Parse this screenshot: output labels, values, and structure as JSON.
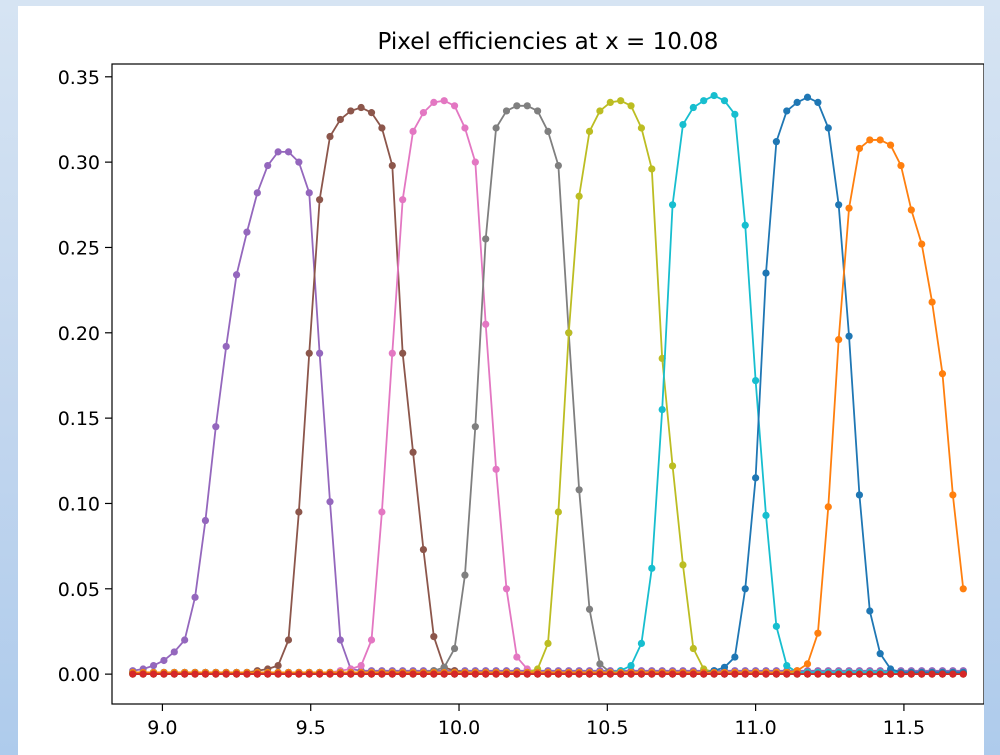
{
  "colors": {
    "tab:blue": "#1f77b4",
    "tab:orange": "#ff7f0e",
    "tab:green": "#2ca02c",
    "tab:red": "#d62728",
    "tab:purple": "#9467bd",
    "tab:brown": "#8c564b",
    "tab:pink": "#e377c2",
    "tab:gray": "#7f7f7f",
    "tab:olive": "#bcbd22",
    "tab:cyan": "#17becf"
  },
  "chart_data": {
    "type": "line",
    "title": "Pixel efficiencies at x = 10.08",
    "xlabel": "",
    "ylabel": "",
    "xlim": [
      8.83,
      11.77
    ],
    "ylim": [
      -0.0175,
      0.3575
    ],
    "x_ticks": [
      9.0,
      9.5,
      10.0,
      10.5,
      11.0,
      11.5
    ],
    "x_tick_labels": [
      "9.0",
      "9.5",
      "10.0",
      "10.5",
      "11.0",
      "11.5"
    ],
    "y_ticks": [
      0.0,
      0.05,
      0.1,
      0.15,
      0.2,
      0.25,
      0.3,
      0.35
    ],
    "y_tick_labels": [
      "0.00",
      "0.05",
      "0.10",
      "0.15",
      "0.20",
      "0.25",
      "0.30",
      "0.35"
    ],
    "grid": false,
    "legend": "none",
    "marker": "circle",
    "x": [
      8.9,
      8.935,
      8.97,
      9.005,
      9.04,
      9.075,
      9.11,
      9.145,
      9.18,
      9.215,
      9.25,
      9.285,
      9.32,
      9.355,
      9.39,
      9.425,
      9.46,
      9.495,
      9.53,
      9.565,
      9.6,
      9.635,
      9.67,
      9.705,
      9.74,
      9.775,
      9.81,
      9.845,
      9.88,
      9.915,
      9.95,
      9.985,
      10.02,
      10.055,
      10.09,
      10.125,
      10.16,
      10.195,
      10.23,
      10.265,
      10.3,
      10.335,
      10.37,
      10.405,
      10.44,
      10.475,
      10.51,
      10.545,
      10.58,
      10.615,
      10.65,
      10.685,
      10.72,
      10.755,
      10.79,
      10.825,
      10.86,
      10.895,
      10.93,
      10.965,
      11.0,
      11.035,
      11.07,
      11.105,
      11.14,
      11.175,
      11.21,
      11.245,
      11.28,
      11.315,
      11.35,
      11.385,
      11.42,
      11.455,
      11.49,
      11.525,
      11.56,
      11.595,
      11.63,
      11.665,
      11.7
    ],
    "series": [
      {
        "color": "tab:purple",
        "values": [
          0.002,
          0.003,
          0.005,
          0.008,
          0.013,
          0.02,
          0.045,
          0.09,
          0.145,
          0.192,
          0.234,
          0.259,
          0.282,
          0.298,
          0.306,
          0.306,
          0.3,
          0.282,
          0.188,
          0.101,
          0.02,
          0.003,
          0.002,
          0.002,
          0.002,
          0.002,
          0.002,
          0.002,
          0.002,
          0.002,
          0.002,
          0.002,
          0.002,
          0.002,
          0.002,
          0.002,
          0.002,
          0.002,
          0.002,
          0.002,
          0.002,
          0.002,
          0.002,
          0.002,
          0.002,
          0.002,
          0.002,
          0.002,
          0.002,
          0.002,
          0.002,
          0.002,
          0.002,
          0.002,
          0.002,
          0.002,
          0.002,
          0.002,
          0.002,
          0.002,
          0.002,
          0.002,
          0.002,
          0.002,
          0.002,
          0.002,
          0.002,
          0.002,
          0.002,
          0.002,
          0.002,
          0.002,
          0.002,
          0.002,
          0.002,
          0.002,
          0.002,
          0.002,
          0.002,
          0.002,
          0.002
        ]
      },
      {
        "color": "tab:brown",
        "values": [
          0.001,
          0.001,
          0.001,
          0.001,
          0.001,
          0.001,
          0.001,
          0.001,
          0.001,
          0.001,
          0.001,
          0.001,
          0.002,
          0.003,
          0.005,
          0.02,
          0.095,
          0.188,
          0.278,
          0.315,
          0.325,
          0.33,
          0.332,
          0.329,
          0.32,
          0.298,
          0.188,
          0.13,
          0.073,
          0.022,
          0.004,
          0.002,
          0.001,
          0.001,
          0.001,
          0.001,
          0.001,
          0.001,
          0.001,
          0.001,
          0.001,
          0.001,
          0.001,
          0.001,
          0.001,
          0.001,
          0.001,
          0.001,
          0.001,
          0.001,
          0.001,
          0.001,
          0.001,
          0.001,
          0.001,
          0.001,
          0.001,
          0.001,
          0.001,
          0.001,
          0.001,
          0.001,
          0.001,
          0.001,
          0.001,
          0.001,
          0.001,
          0.001,
          0.001,
          0.001,
          0.001,
          0.001,
          0.001,
          0.001,
          0.001,
          0.001,
          0.001,
          0.001,
          0.001,
          0.001,
          0.001
        ]
      },
      {
        "color": "tab:pink",
        "values": [
          0.001,
          0.001,
          0.001,
          0.001,
          0.001,
          0.001,
          0.001,
          0.001,
          0.001,
          0.001,
          0.001,
          0.001,
          0.001,
          0.001,
          0.001,
          0.001,
          0.001,
          0.001,
          0.001,
          0.001,
          0.002,
          0.003,
          0.005,
          0.02,
          0.095,
          0.188,
          0.278,
          0.318,
          0.329,
          0.335,
          0.336,
          0.333,
          0.32,
          0.3,
          0.205,
          0.12,
          0.05,
          0.01,
          0.003,
          0.001,
          0.001,
          0.001,
          0.001,
          0.001,
          0.001,
          0.001,
          0.001,
          0.001,
          0.001,
          0.001,
          0.001,
          0.001,
          0.001,
          0.001,
          0.001,
          0.001,
          0.001,
          0.001,
          0.001,
          0.001,
          0.001,
          0.001,
          0.001,
          0.001,
          0.001,
          0.001,
          0.001,
          0.001,
          0.001,
          0.001,
          0.001,
          0.001,
          0.001,
          0.001,
          0.001,
          0.001,
          0.001,
          0.001,
          0.001,
          0.001,
          0.001
        ]
      },
      {
        "color": "tab:gray",
        "values": [
          0.001,
          0.001,
          0.001,
          0.001,
          0.001,
          0.001,
          0.001,
          0.001,
          0.001,
          0.001,
          0.001,
          0.001,
          0.001,
          0.001,
          0.001,
          0.001,
          0.001,
          0.001,
          0.001,
          0.001,
          0.001,
          0.001,
          0.001,
          0.001,
          0.001,
          0.001,
          0.001,
          0.001,
          0.001,
          0.002,
          0.004,
          0.015,
          0.058,
          0.145,
          0.255,
          0.32,
          0.33,
          0.333,
          0.333,
          0.33,
          0.318,
          0.298,
          0.2,
          0.108,
          0.038,
          0.006,
          0.001,
          0.001,
          0.001,
          0.001,
          0.001,
          0.001,
          0.001,
          0.001,
          0.001,
          0.001,
          0.001,
          0.001,
          0.001,
          0.001,
          0.001,
          0.001,
          0.001,
          0.001,
          0.001,
          0.001,
          0.001,
          0.001,
          0.001,
          0.001,
          0.001,
          0.001,
          0.001,
          0.001,
          0.001,
          0.001,
          0.001,
          0.001,
          0.001,
          0.001,
          0.001
        ]
      },
      {
        "color": "tab:olive",
        "values": [
          0.001,
          0.001,
          0.001,
          0.001,
          0.001,
          0.001,
          0.001,
          0.001,
          0.001,
          0.001,
          0.001,
          0.001,
          0.001,
          0.001,
          0.001,
          0.001,
          0.001,
          0.001,
          0.001,
          0.001,
          0.001,
          0.001,
          0.001,
          0.001,
          0.001,
          0.001,
          0.001,
          0.001,
          0.001,
          0.001,
          0.001,
          0.001,
          0.001,
          0.001,
          0.001,
          0.001,
          0.001,
          0.001,
          0.001,
          0.003,
          0.018,
          0.095,
          0.2,
          0.28,
          0.318,
          0.33,
          0.335,
          0.336,
          0.333,
          0.32,
          0.296,
          0.185,
          0.122,
          0.064,
          0.015,
          0.003,
          0.001,
          0.001,
          0.001,
          0.001,
          0.001,
          0.001,
          0.001,
          0.001,
          0.001,
          0.001,
          0.001,
          0.001,
          0.001,
          0.001,
          0.001,
          0.001,
          0.001,
          0.001,
          0.001,
          0.001,
          0.001,
          0.001,
          0.001,
          0.001,
          0.001
        ]
      },
      {
        "color": "tab:cyan",
        "values": [
          0.001,
          0.001,
          0.001,
          0.001,
          0.001,
          0.001,
          0.001,
          0.001,
          0.001,
          0.001,
          0.001,
          0.001,
          0.001,
          0.001,
          0.001,
          0.001,
          0.001,
          0.001,
          0.001,
          0.001,
          0.001,
          0.001,
          0.001,
          0.001,
          0.001,
          0.001,
          0.001,
          0.001,
          0.001,
          0.001,
          0.001,
          0.001,
          0.001,
          0.001,
          0.001,
          0.001,
          0.001,
          0.001,
          0.001,
          0.001,
          0.001,
          0.001,
          0.001,
          0.001,
          0.001,
          0.001,
          0.001,
          0.002,
          0.005,
          0.018,
          0.062,
          0.155,
          0.275,
          0.322,
          0.332,
          0.336,
          0.339,
          0.336,
          0.328,
          0.263,
          0.172,
          0.093,
          0.028,
          0.005,
          0.001,
          0.001,
          0.001,
          0.001,
          0.001,
          0.001,
          0.001,
          0.001,
          0.001,
          0.001,
          0.001,
          0.001,
          0.001,
          0.001,
          0.001,
          0.001,
          0.001
        ]
      },
      {
        "color": "tab:blue",
        "values": [
          0.001,
          0.001,
          0.001,
          0.001,
          0.001,
          0.001,
          0.001,
          0.001,
          0.001,
          0.001,
          0.001,
          0.001,
          0.001,
          0.001,
          0.001,
          0.001,
          0.001,
          0.001,
          0.001,
          0.001,
          0.001,
          0.001,
          0.001,
          0.001,
          0.001,
          0.001,
          0.001,
          0.001,
          0.001,
          0.001,
          0.001,
          0.001,
          0.001,
          0.001,
          0.001,
          0.001,
          0.001,
          0.001,
          0.001,
          0.001,
          0.001,
          0.001,
          0.001,
          0.001,
          0.001,
          0.001,
          0.001,
          0.001,
          0.001,
          0.001,
          0.001,
          0.001,
          0.001,
          0.001,
          0.001,
          0.001,
          0.002,
          0.004,
          0.01,
          0.05,
          0.115,
          0.235,
          0.312,
          0.33,
          0.335,
          0.338,
          0.335,
          0.32,
          0.275,
          0.198,
          0.105,
          0.037,
          0.012,
          0.003,
          0.001,
          0.001,
          0.001,
          0.001,
          0.001,
          0.001,
          0.001
        ]
      },
      {
        "color": "tab:orange",
        "values": [
          0.001,
          0.001,
          0.001,
          0.001,
          0.001,
          0.001,
          0.001,
          0.001,
          0.001,
          0.001,
          0.001,
          0.001,
          0.001,
          0.001,
          0.001,
          0.001,
          0.001,
          0.001,
          0.001,
          0.001,
          0.001,
          0.001,
          0.001,
          0.001,
          0.001,
          0.001,
          0.001,
          0.001,
          0.001,
          0.001,
          0.001,
          0.001,
          0.001,
          0.001,
          0.001,
          0.001,
          0.001,
          0.001,
          0.001,
          0.001,
          0.001,
          0.001,
          0.001,
          0.001,
          0.001,
          0.001,
          0.001,
          0.001,
          0.001,
          0.001,
          0.001,
          0.001,
          0.001,
          0.001,
          0.001,
          0.001,
          0.001,
          0.001,
          0.001,
          0.001,
          0.001,
          0.001,
          0.001,
          0.001,
          0.002,
          0.006,
          0.024,
          0.098,
          0.196,
          0.273,
          0.308,
          0.313,
          0.313,
          0.31,
          0.298,
          0.272,
          0.252,
          0.218,
          0.176,
          0.105,
          0.05
        ]
      },
      {
        "color": "tab:green",
        "values": [
          0.0,
          0.0,
          0.0,
          0.0,
          0.0,
          0.0,
          0.0,
          0.0,
          0.0,
          0.0,
          0.0,
          0.0,
          0.0,
          0.0,
          0.0,
          0.0,
          0.0,
          0.0,
          0.0,
          0.0,
          0.0,
          0.0,
          0.0,
          0.0,
          0.0,
          0.0,
          0.0,
          0.0,
          0.0,
          0.0,
          0.0,
          0.0,
          0.0,
          0.0,
          0.0,
          0.0,
          0.0,
          0.0,
          0.0,
          0.0,
          0.0,
          0.0,
          0.0,
          0.0,
          0.0,
          0.0,
          0.0,
          0.0,
          0.0,
          0.0,
          0.0,
          0.0,
          0.0,
          0.0,
          0.0,
          0.0,
          0.0,
          0.0,
          0.0,
          0.0,
          0.0,
          0.0,
          0.0,
          0.0,
          0.0,
          0.0,
          0.0,
          0.0,
          0.0,
          0.0,
          0.0,
          0.0,
          0.0,
          0.0,
          0.0,
          0.0,
          0.0,
          0.0,
          0.0,
          0.0,
          0.0
        ]
      },
      {
        "color": "tab:red",
        "values": [
          0.0,
          0.0,
          0.0,
          0.0,
          0.0,
          0.0,
          0.0,
          0.0,
          0.0,
          0.0,
          0.0,
          0.0,
          0.0,
          0.0,
          0.0,
          0.0,
          0.0,
          0.0,
          0.0,
          0.0,
          0.0,
          0.0,
          0.0,
          0.0,
          0.0,
          0.0,
          0.0,
          0.0,
          0.0,
          0.0,
          0.0,
          0.0,
          0.0,
          0.0,
          0.0,
          0.0,
          0.0,
          0.0,
          0.0,
          0.0,
          0.0,
          0.0,
          0.0,
          0.0,
          0.0,
          0.0,
          0.0,
          0.0,
          0.0,
          0.0,
          0.0,
          0.0,
          0.0,
          0.0,
          0.0,
          0.0,
          0.0,
          0.0,
          0.0,
          0.0,
          0.0,
          0.0,
          0.0,
          0.0,
          0.0,
          0.0,
          0.0,
          0.0,
          0.0,
          0.0,
          0.0,
          0.0,
          0.0,
          0.0,
          0.0,
          0.0,
          0.0,
          0.0,
          0.0,
          0.0,
          0.0
        ]
      }
    ]
  }
}
